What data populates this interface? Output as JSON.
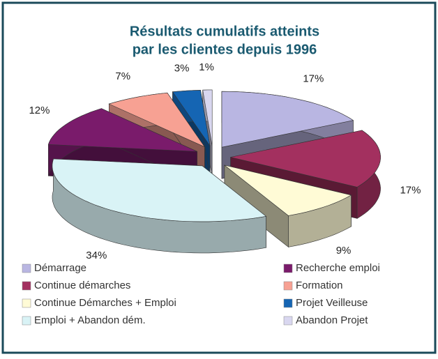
{
  "chart_data": {
    "type": "pie",
    "title": [
      "Résultats cumulatifs atteints",
      "par les clientes depuis 1996"
    ],
    "categories": [
      "Démarrage",
      "Continue démarches",
      "Continue Démarches + Emploi",
      "Emploi + Abandon dém.",
      "Recherche emploi",
      "Formation",
      "Projet Veilleuse",
      "Abandon Projet"
    ],
    "values": [
      17,
      17,
      9,
      34,
      12,
      7,
      3,
      1
    ],
    "value_labels": [
      "17%",
      "17%",
      "9%",
      "34%",
      "12%",
      "7%",
      "3%",
      "1%"
    ],
    "colors": [
      "#b9b6e2",
      "#a3305f",
      "#fffbd6",
      "#d9f3f6",
      "#7a1b6b",
      "#f7a193",
      "#1565b3",
      "#d9d7f0"
    ]
  }
}
